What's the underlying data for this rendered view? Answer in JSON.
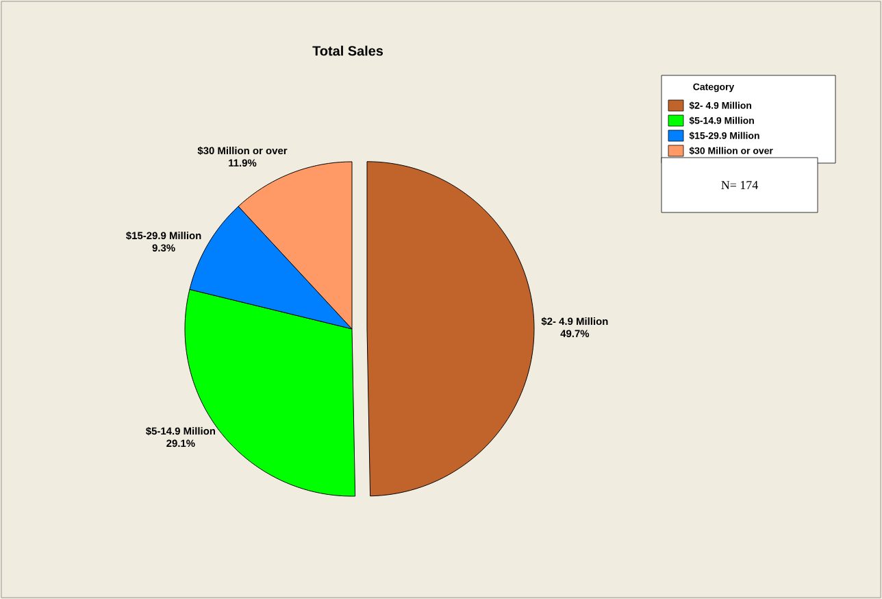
{
  "chart_data": {
    "type": "pie",
    "title": "Total Sales",
    "legend_title": "Category",
    "categories": [
      "$2- 4.9 Million",
      "$5-14.9 Million",
      "$15-29.9 Million",
      "$30 Million or over"
    ],
    "values": [
      49.7,
      29.1,
      9.3,
      11.9
    ],
    "colors": [
      "#c0642c",
      "#00ff00",
      "#0080ff",
      "#ff9966"
    ],
    "value_labels": [
      "49.7%",
      "29.1%",
      "9.3%",
      "11.9%"
    ],
    "legend": "top right",
    "annotations": [
      "N= 174"
    ]
  }
}
